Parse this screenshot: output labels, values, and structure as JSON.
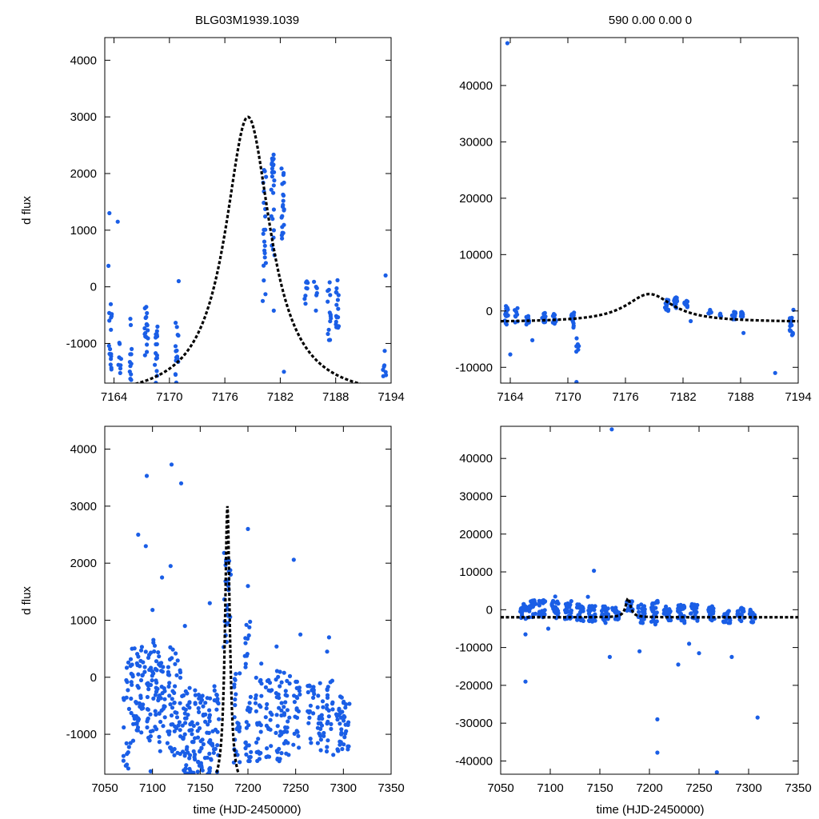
{
  "figure": {
    "title_left": "BLG03M1939.1039",
    "title_right": "590  0.00  0.00  0",
    "ylabel": "d flux",
    "xlabel": "time (HJD-2450000)"
  },
  "colors": {
    "points": "#1a5ee6",
    "model": "#000000",
    "axes": "#000000"
  },
  "model": {
    "t0": 7178.5,
    "peak": 3000,
    "base": -2000,
    "tau": 3.0
  },
  "chart_data": [
    {
      "id": "top-left",
      "type": "scatter",
      "title": "BLG03M1939.1039",
      "ylabel": "d flux",
      "xlabel": "",
      "xlim": [
        7163,
        7194
      ],
      "ylim": [
        -1700,
        4400
      ],
      "xticks": [
        7164,
        7170,
        7176,
        7182,
        7188,
        7194
      ],
      "yticks": [
        -1000,
        0,
        1000,
        2000,
        3000,
        4000
      ],
      "clusters": [
        {
          "t": 7163.6,
          "ymin": -1700,
          "ymax": -300,
          "n": 16
        },
        {
          "t": 7164.6,
          "ymin": -1600,
          "ymax": -900,
          "n": 8
        },
        {
          "t": 7165.8,
          "ymin": -1650,
          "ymax": -500,
          "n": 12
        },
        {
          "t": 7167.5,
          "ymin": -1500,
          "ymax": -300,
          "n": 18
        },
        {
          "t": 7168.6,
          "ymin": -1700,
          "ymax": -700,
          "n": 16
        },
        {
          "t": 7170.8,
          "ymin": -1700,
          "ymax": -500,
          "n": 16
        },
        {
          "t": 7180.3,
          "ymin": -200,
          "ymax": 2100,
          "n": 20
        },
        {
          "t": 7181.2,
          "ymin": 500,
          "ymax": 2350,
          "n": 24
        },
        {
          "t": 7182.3,
          "ymin": 800,
          "ymax": 2100,
          "n": 20
        },
        {
          "t": 7184.8,
          "ymin": -300,
          "ymax": 250,
          "n": 8
        },
        {
          "t": 7185.8,
          "ymin": -500,
          "ymax": 100,
          "n": 6
        },
        {
          "t": 7187.3,
          "ymin": -1000,
          "ymax": 100,
          "n": 14
        },
        {
          "t": 7188.2,
          "ymin": -800,
          "ymax": 200,
          "n": 16
        },
        {
          "t": 7193.3,
          "ymin": -1600,
          "ymax": -1100,
          "n": 7
        }
      ],
      "points": [
        [
          7163.5,
          1300
        ],
        [
          7164.4,
          1150
        ],
        [
          7163.4,
          370
        ],
        [
          7171.0,
          100
        ],
        [
          7181.3,
          -420
        ],
        [
          7182.4,
          -1500
        ],
        [
          7193.4,
          200
        ],
        [
          7180.1,
          -250
        ]
      ],
      "model": true
    },
    {
      "id": "top-right",
      "type": "scatter",
      "title": "590  0.00  0.00  0",
      "ylabel": "",
      "xlabel": "",
      "xlim": [
        7163,
        7194
      ],
      "ylim": [
        -12800,
        48500
      ],
      "xticks": [
        7164,
        7170,
        7176,
        7182,
        7188,
        7194
      ],
      "yticks": [
        -10000,
        0,
        10000,
        20000,
        30000,
        40000
      ],
      "clusters": [
        {
          "t": 7163.6,
          "ymin": -2500,
          "ymax": 1000,
          "n": 16
        },
        {
          "t": 7164.6,
          "ymin": -2200,
          "ymax": 600,
          "n": 8
        },
        {
          "t": 7165.8,
          "ymin": -2400,
          "ymax": -800,
          "n": 10
        },
        {
          "t": 7167.5,
          "ymin": -2000,
          "ymax": 0,
          "n": 16
        },
        {
          "t": 7168.6,
          "ymin": -2300,
          "ymax": -500,
          "n": 14
        },
        {
          "t": 7170.5,
          "ymin": -3000,
          "ymax": -300,
          "n": 14
        },
        {
          "t": 7171.0,
          "ymin": -8000,
          "ymax": -3000,
          "n": 6
        },
        {
          "t": 7180.3,
          "ymin": 0,
          "ymax": 2000,
          "n": 14
        },
        {
          "t": 7181.2,
          "ymin": 400,
          "ymax": 2500,
          "n": 18
        },
        {
          "t": 7182.3,
          "ymin": 600,
          "ymax": 2000,
          "n": 14
        },
        {
          "t": 7184.8,
          "ymin": -500,
          "ymax": 200,
          "n": 6
        },
        {
          "t": 7185.8,
          "ymin": -1200,
          "ymax": 0,
          "n": 5
        },
        {
          "t": 7187.3,
          "ymin": -1500,
          "ymax": 0,
          "n": 10
        },
        {
          "t": 7188.2,
          "ymin": -1200,
          "ymax": 0,
          "n": 12
        },
        {
          "t": 7193.3,
          "ymin": -4500,
          "ymax": -1000,
          "n": 14
        }
      ],
      "points": [
        [
          7163.7,
          47500
        ],
        [
          7164.0,
          -7700
        ],
        [
          7166.3,
          -5200
        ],
        [
          7170.9,
          -12600
        ],
        [
          7191.6,
          -11000
        ],
        [
          7182.8,
          -1800
        ],
        [
          7188.3,
          -3900
        ],
        [
          7193.5,
          200
        ]
      ],
      "model": true
    },
    {
      "id": "bottom-left",
      "type": "scatter",
      "title": "",
      "ylabel": "d flux",
      "xlabel": "time (HJD-2450000)",
      "xlim": [
        7050,
        7350
      ],
      "ylim": [
        -1700,
        4400
      ],
      "xticks": [
        7050,
        7100,
        7150,
        7200,
        7250,
        7300,
        7350
      ],
      "yticks": [
        -1000,
        0,
        1000,
        2000,
        3000,
        4000
      ],
      "clusters": [
        {
          "t": 7073,
          "ymin": -1600,
          "ymax": 500,
          "n": 18
        },
        {
          "t": 7080,
          "ymin": -1200,
          "ymax": 700,
          "n": 22
        },
        {
          "t": 7087,
          "ymin": -1000,
          "ymax": 600,
          "n": 30
        },
        {
          "t": 7095,
          "ymin": -1200,
          "ymax": 500,
          "n": 26
        },
        {
          "t": 7103,
          "ymin": -1000,
          "ymax": 700,
          "n": 26
        },
        {
          "t": 7110,
          "ymin": -1300,
          "ymax": 500,
          "n": 28
        },
        {
          "t": 7118,
          "ymin": -1400,
          "ymax": 600,
          "n": 26
        },
        {
          "t": 7126,
          "ymin": -1500,
          "ymax": 500,
          "n": 26
        },
        {
          "t": 7134,
          "ymin": -1700,
          "ymax": -200,
          "n": 30
        },
        {
          "t": 7142,
          "ymin": -1700,
          "ymax": -100,
          "n": 30
        },
        {
          "t": 7150,
          "ymin": -1700,
          "ymax": -300,
          "n": 30
        },
        {
          "t": 7158,
          "ymin": -1700,
          "ymax": -200,
          "n": 26
        },
        {
          "t": 7166,
          "ymin": -1700,
          "ymax": 0,
          "n": 22
        },
        {
          "t": 7178,
          "ymin": 500,
          "ymax": 2200,
          "n": 24
        },
        {
          "t": 7188,
          "ymin": -1500,
          "ymax": 300,
          "n": 24
        },
        {
          "t": 7200,
          "ymin": -1500,
          "ymax": 1000,
          "n": 32
        },
        {
          "t": 7211,
          "ymin": -1500,
          "ymax": 0,
          "n": 24
        },
        {
          "t": 7222,
          "ymin": -1400,
          "ymax": 0,
          "n": 22
        },
        {
          "t": 7232,
          "ymin": -1500,
          "ymax": 200,
          "n": 28
        },
        {
          "t": 7241,
          "ymin": -1400,
          "ymax": 100,
          "n": 24
        },
        {
          "t": 7251,
          "ymin": -1300,
          "ymax": 0,
          "n": 22
        },
        {
          "t": 7266,
          "ymin": -1200,
          "ymax": 0,
          "n": 20
        },
        {
          "t": 7276,
          "ymin": -1300,
          "ymax": -100,
          "n": 22
        },
        {
          "t": 7286,
          "ymin": -1500,
          "ymax": 0,
          "n": 22
        },
        {
          "t": 7296,
          "ymin": -1400,
          "ymax": -200,
          "n": 22
        },
        {
          "t": 7303,
          "ymin": -1300,
          "ymax": -300,
          "n": 18
        }
      ],
      "points": [
        [
          7094,
          3530
        ],
        [
          7120,
          3730
        ],
        [
          7130,
          3400
        ],
        [
          7085,
          2500
        ],
        [
          7093,
          2300
        ],
        [
          7200,
          2600
        ],
        [
          7248,
          2060
        ],
        [
          7182,
          1800
        ],
        [
          7110,
          1750
        ],
        [
          7119,
          1950
        ],
        [
          7175,
          2180
        ],
        [
          7200,
          1600
        ],
        [
          7100,
          1180
        ],
        [
          7160,
          1300
        ],
        [
          7134,
          900
        ],
        [
          7255,
          750
        ],
        [
          7285,
          700
        ],
        [
          7283,
          450
        ],
        [
          7230,
          540
        ],
        [
          7214,
          240
        ],
        [
          7072,
          -1550
        ],
        [
          7098,
          -1650
        ]
      ],
      "model": true
    },
    {
      "id": "bottom-right",
      "type": "scatter",
      "title": "",
      "ylabel": "",
      "xlabel": "time (HJD-2450000)",
      "xlim": [
        7050,
        7350
      ],
      "ylim": [
        -43500,
        48500
      ],
      "xticks": [
        7050,
        7100,
        7150,
        7200,
        7250,
        7300,
        7350
      ],
      "yticks": [
        -40000,
        -30000,
        -20000,
        -10000,
        0,
        10000,
        20000,
        30000,
        40000
      ],
      "clusters": [
        {
          "t": 7073,
          "ymin": -2500,
          "ymax": 1500,
          "n": 18
        },
        {
          "t": 7082,
          "ymin": -2000,
          "ymax": 2500,
          "n": 26
        },
        {
          "t": 7092,
          "ymin": -2000,
          "ymax": 2500,
          "n": 26
        },
        {
          "t": 7105,
          "ymin": -2500,
          "ymax": 2500,
          "n": 24
        },
        {
          "t": 7118,
          "ymin": -2500,
          "ymax": 2500,
          "n": 26
        },
        {
          "t": 7130,
          "ymin": -3000,
          "ymax": 1500,
          "n": 24
        },
        {
          "t": 7142,
          "ymin": -3500,
          "ymax": 1000,
          "n": 30
        },
        {
          "t": 7155,
          "ymin": -3500,
          "ymax": 1000,
          "n": 28
        },
        {
          "t": 7166,
          "ymin": -3000,
          "ymax": 1000,
          "n": 20
        },
        {
          "t": 7180,
          "ymin": -500,
          "ymax": 2500,
          "n": 16
        },
        {
          "t": 7192,
          "ymin": -4000,
          "ymax": 1500,
          "n": 24
        },
        {
          "t": 7205,
          "ymin": -4000,
          "ymax": 2500,
          "n": 30
        },
        {
          "t": 7218,
          "ymin": -3000,
          "ymax": 1000,
          "n": 22
        },
        {
          "t": 7232,
          "ymin": -3500,
          "ymax": 1500,
          "n": 26
        },
        {
          "t": 7245,
          "ymin": -3000,
          "ymax": 1500,
          "n": 24
        },
        {
          "t": 7262,
          "ymin": -3000,
          "ymax": 1000,
          "n": 20
        },
        {
          "t": 7278,
          "ymin": -3500,
          "ymax": 500,
          "n": 22
        },
        {
          "t": 7292,
          "ymin": -3000,
          "ymax": 500,
          "n": 22
        },
        {
          "t": 7304,
          "ymin": -3500,
          "ymax": 0,
          "n": 18
        }
      ],
      "points": [
        [
          7162,
          47700
        ],
        [
          7144,
          10300
        ],
        [
          7075,
          -19000
        ],
        [
          7098,
          -5000
        ],
        [
          7105,
          3500
        ],
        [
          7138,
          3400
        ],
        [
          7160,
          -12500
        ],
        [
          7190,
          -11000
        ],
        [
          7208,
          -29000
        ],
        [
          7208,
          -37800
        ],
        [
          7229,
          -14500
        ],
        [
          7268,
          -43000
        ],
        [
          7309,
          -28500
        ],
        [
          7283,
          -12500
        ],
        [
          7240,
          -9000
        ],
        [
          7250,
          -11500
        ],
        [
          7075,
          -6500
        ]
      ],
      "model": true
    }
  ]
}
